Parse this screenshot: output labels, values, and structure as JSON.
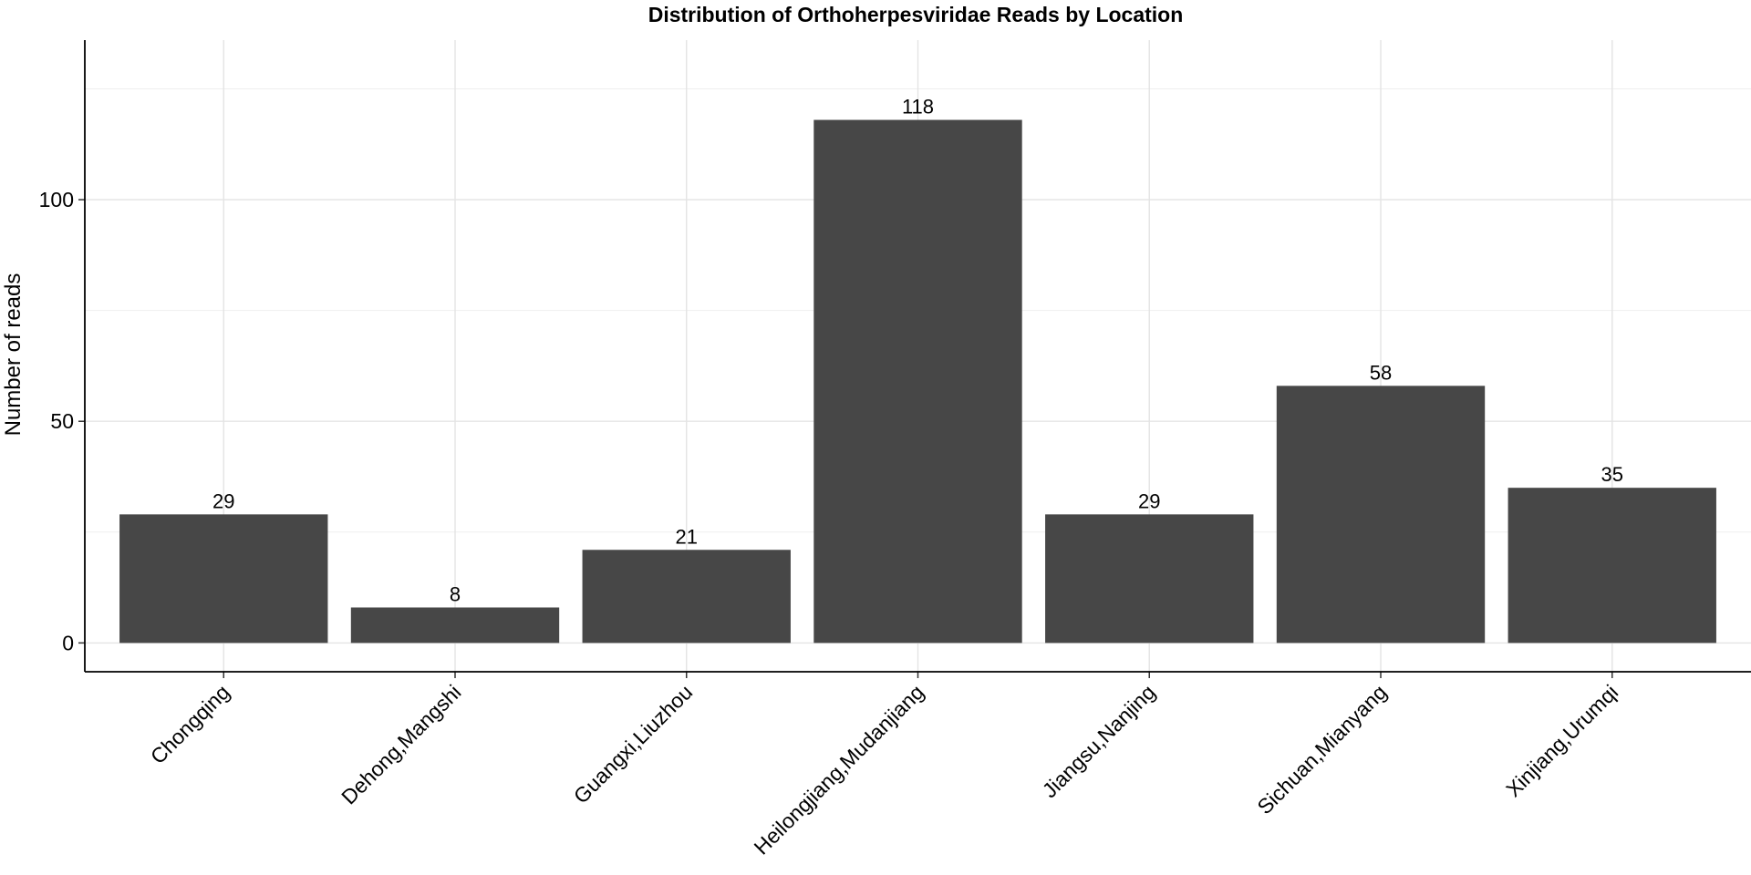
{
  "chart_data": {
    "type": "bar",
    "title": "Distribution of Orthoherpesviridae Reads by Location",
    "xlabel": "",
    "ylabel": "Number of reads",
    "categories": [
      "Chongqing",
      "Dehong,Mangshi",
      "Guangxi,Liuzhou",
      "Heilongjiang,Mudanjiang",
      "Jiangsu,Nanjing",
      "Sichuan,Mianyang",
      "Xinjiang,Urumqi"
    ],
    "values": [
      29,
      8,
      21,
      118,
      29,
      58,
      35
    ],
    "data_labels": [
      "29",
      "8",
      "21",
      "118",
      "29",
      "58",
      "35"
    ],
    "ylim": [
      -6.5,
      136
    ],
    "yticks": [
      0,
      50,
      100
    ],
    "ytick_labels": [
      "0",
      "50",
      "100"
    ],
    "grid": true,
    "legend": "none",
    "bar_color": "#474747"
  }
}
